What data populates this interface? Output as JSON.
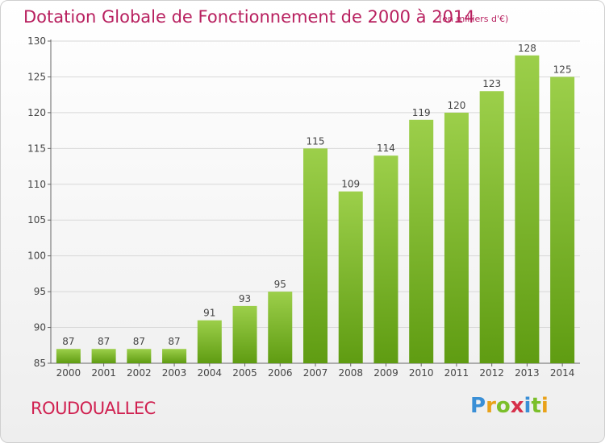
{
  "header": {
    "title": "Dotation Globale de Fonctionnement de 2000 à 2014",
    "subtitle": "(en milliers d'€)"
  },
  "footer": {
    "commune": "ROUDOUALLEC",
    "logo_text": "Proxiti"
  },
  "colors": {
    "title": "#b8205f",
    "bar_top": "#9ccf4a",
    "bar_bottom": "#5f9c12",
    "grid": "#d8d8d8"
  },
  "chart_data": {
    "type": "bar",
    "title": "Dotation Globale de Fonctionnement de 2000 à 2014",
    "subtitle": "(en milliers d'€)",
    "xlabel": "",
    "ylabel": "",
    "categories": [
      "2000",
      "2001",
      "2002",
      "2003",
      "2004",
      "2005",
      "2006",
      "2007",
      "2008",
      "2009",
      "2010",
      "2011",
      "2012",
      "2013",
      "2014"
    ],
    "values": [
      87,
      87,
      87,
      87,
      91,
      93,
      95,
      115,
      109,
      114,
      119,
      120,
      123,
      128,
      125
    ],
    "ylim": [
      85,
      130
    ],
    "yticks": [
      85,
      90,
      95,
      100,
      105,
      110,
      115,
      120,
      125,
      130
    ],
    "grid": true,
    "data_labels": true
  }
}
